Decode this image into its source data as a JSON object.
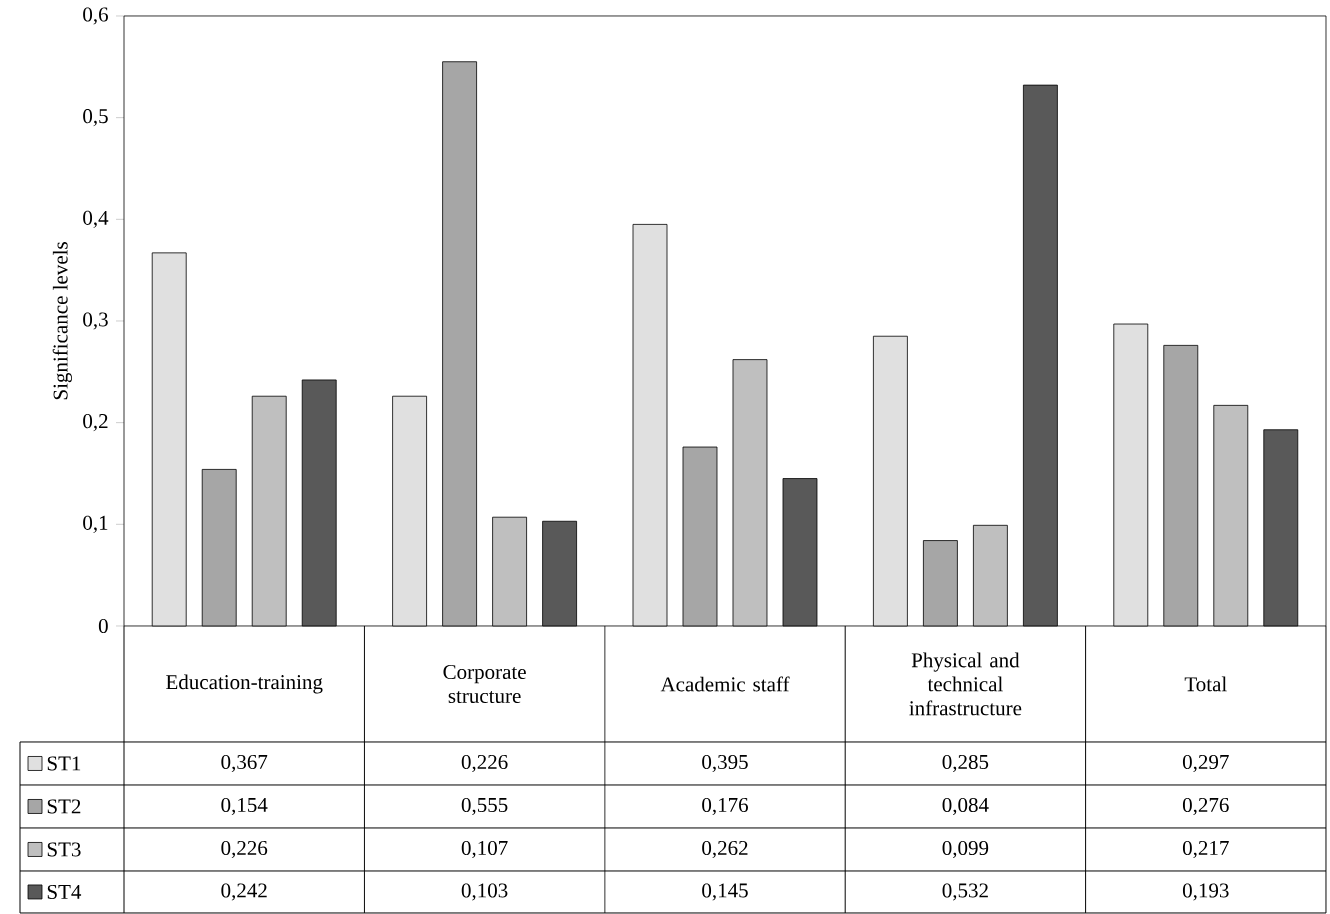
{
  "chart_data": {
    "type": "bar",
    "ylabel": "Significance levels",
    "ylim": [
      0,
      0.6
    ],
    "yticks": [
      {
        "value": 0,
        "label": "0"
      },
      {
        "value": 0.1,
        "label": "0,1"
      },
      {
        "value": 0.2,
        "label": "0,2"
      },
      {
        "value": 0.3,
        "label": "0,3"
      },
      {
        "value": 0.4,
        "label": "0,4"
      },
      {
        "value": 0.5,
        "label": "0,5"
      },
      {
        "value": 0.6,
        "label": "0,6"
      }
    ],
    "categories": [
      "Education-training",
      "Corporate structure",
      "Academic staff",
      "Physical and technical infrastructure",
      "Total"
    ],
    "legend": "bottom left",
    "series": [
      {
        "name": "ST1",
        "color": "#e0e0e0",
        "values": [
          0.367,
          0.226,
          0.395,
          0.285,
          0.297
        ],
        "value_labels": [
          "0,367",
          "0,226",
          "0,395",
          "0,285",
          "0,297"
        ]
      },
      {
        "name": "ST2",
        "color": "#a6a6a6",
        "values": [
          0.154,
          0.555,
          0.176,
          0.084,
          0.276
        ],
        "value_labels": [
          "0,154",
          "0,555",
          "0,176",
          "0,084",
          "0,276"
        ]
      },
      {
        "name": "ST3",
        "color": "#bfbfbf",
        "values": [
          0.226,
          0.107,
          0.262,
          0.099,
          0.217
        ],
        "value_labels": [
          "0,226",
          "0,107",
          "0,262",
          "0,099",
          "0,217"
        ]
      },
      {
        "name": "ST4",
        "color": "#595959",
        "values": [
          0.242,
          0.103,
          0.145,
          0.532,
          0.193
        ],
        "value_labels": [
          "0,242",
          "0,103",
          "0,145",
          "0,532",
          "0,193"
        ]
      }
    ]
  }
}
